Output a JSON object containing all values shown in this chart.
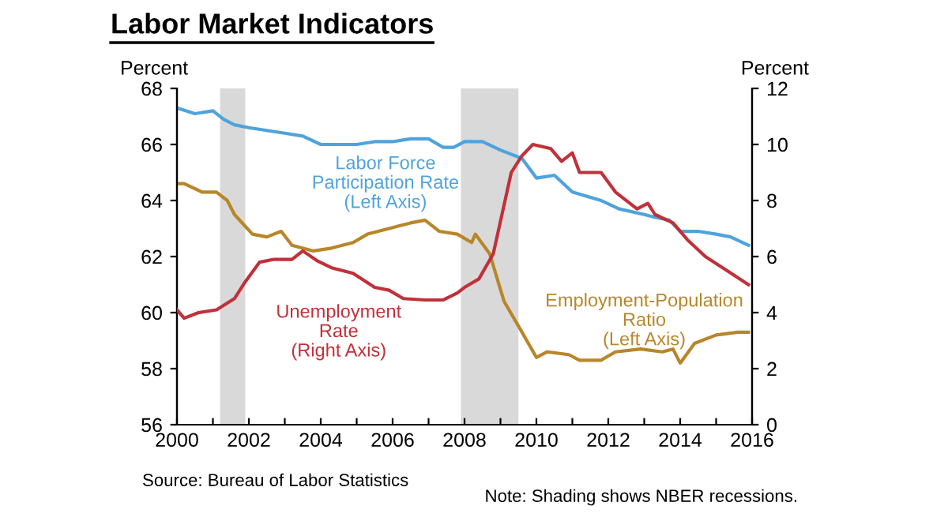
{
  "chart_data": {
    "type": "line",
    "title": "Labor Market Indicators",
    "ylabel": "Percent",
    "y2label": "Percent",
    "xlim": [
      2000,
      2016
    ],
    "xticks": [
      2000,
      {
        "value": 2001,
        "label": null
      },
      2002,
      {
        "value": 2003,
        "label": null
      },
      2004,
      {
        "value": 2005,
        "label": null
      },
      2006,
      {
        "value": 2007,
        "label": null
      },
      2008,
      {
        "value": 2009,
        "label": null
      },
      2010,
      {
        "value": 2011,
        "label": null
      },
      2012,
      {
        "value": 2013,
        "label": null
      },
      2014,
      {
        "value": 2015,
        "label": null
      },
      2016
    ],
    "ylim": [
      56,
      68
    ],
    "yticks": [
      56,
      58,
      60,
      62,
      64,
      66,
      68
    ],
    "y2lim": [
      0,
      12
    ],
    "y2ticks": [
      0,
      2,
      4,
      6,
      8,
      10,
      12
    ],
    "grid": false,
    "legend": false,
    "line_style": "solid",
    "marker": "none",
    "bands": [
      {
        "axis": "x",
        "from": 2001.2,
        "to": 2001.9,
        "color": "#d9d9d9"
      },
      {
        "axis": "x",
        "from": 2007.9,
        "to": 2009.5,
        "color": "#d9d9d9"
      }
    ],
    "annotations": [
      "Source: Bureau of Labor Statistics",
      "Note: Shading shows NBER recessions."
    ],
    "series": [
      {
        "name": "Labor Force\nParticipation Rate\n(Left Axis)",
        "color": "#4fa3dc",
        "x": [
          2000,
          2000.5,
          2001,
          2001.3,
          2001.6,
          2002,
          2002.5,
          2003,
          2003.5,
          2004,
          2004.5,
          2005,
          2005.5,
          2006,
          2006.5,
          2007,
          2007.4,
          2007.7,
          2008,
          2008.5,
          2009,
          2009.6,
          2010,
          2010.5,
          2011,
          2011.8,
          2012.3,
          2013,
          2013.3,
          2013.7,
          2014,
          2014.5,
          2015,
          2015.4,
          2015.9
        ],
        "values": [
          67.3,
          67.1,
          67.2,
          66.9,
          66.7,
          66.6,
          66.5,
          66.4,
          66.3,
          66.0,
          66.0,
          66.0,
          66.1,
          66.1,
          66.2,
          66.2,
          65.9,
          65.9,
          66.1,
          66.1,
          65.8,
          65.5,
          64.8,
          64.9,
          64.3,
          64.0,
          63.7,
          63.5,
          63.4,
          63.3,
          62.9,
          62.9,
          62.8,
          62.7,
          62.4
        ]
      },
      {
        "name": "Unemployment\nRate\n(Right Axis)",
        "color": "#c0313a",
        "axis": "y2",
        "x": [
          2000,
          2000.2,
          2000.6,
          2001.1,
          2001.6,
          2001.9,
          2002.3,
          2002.7,
          2003.2,
          2003.5,
          2003.9,
          2004.3,
          2004.9,
          2005.5,
          2005.9,
          2006.3,
          2006.9,
          2007.4,
          2007.8,
          2008.0,
          2008.4,
          2008.8,
          2009.3,
          2009.6,
          2009.9,
          2010.4,
          2010.7,
          2011.0,
          2011.2,
          2011.8,
          2012.2,
          2012.8,
          2013.1,
          2013.3,
          2013.8,
          2014.2,
          2014.7,
          2015.3,
          2015.9
        ],
        "values": [
          4.1,
          3.8,
          4.0,
          4.1,
          4.5,
          5.1,
          5.8,
          5.9,
          5.9,
          6.2,
          5.85,
          5.6,
          5.4,
          4.9,
          4.8,
          4.5,
          4.45,
          4.45,
          4.7,
          4.9,
          5.2,
          6.1,
          9.0,
          9.6,
          10.0,
          9.85,
          9.4,
          9.7,
          9.0,
          9.0,
          8.3,
          7.7,
          7.9,
          7.5,
          7.2,
          6.6,
          6.0,
          5.5,
          5.0
        ]
      },
      {
        "name": "Employment-Population\nRatio\n(Left Axis)",
        "color": "#b8862a",
        "x": [
          2000,
          2000.2,
          2000.7,
          2001.1,
          2001.4,
          2001.6,
          2002.1,
          2002.5,
          2002.9,
          2003.2,
          2003.8,
          2004.3,
          2004.9,
          2005.3,
          2005.9,
          2006.5,
          2006.9,
          2007.3,
          2007.8,
          2008.2,
          2008.3,
          2008.7,
          2009.1,
          2009.6,
          2010.0,
          2010.3,
          2010.9,
          2011.2,
          2011.8,
          2012.2,
          2012.9,
          2013.5,
          2013.8,
          2014.0,
          2014.4,
          2015.0,
          2015.6,
          2015.9
        ],
        "values": [
          64.6,
          64.6,
          64.3,
          64.3,
          64.0,
          63.5,
          62.8,
          62.7,
          62.9,
          62.4,
          62.2,
          62.3,
          62.5,
          62.8,
          63.0,
          63.2,
          63.3,
          62.9,
          62.8,
          62.5,
          62.8,
          62.1,
          60.4,
          59.3,
          58.4,
          58.6,
          58.5,
          58.3,
          58.3,
          58.6,
          58.7,
          58.6,
          58.7,
          58.2,
          58.9,
          59.2,
          59.3,
          59.3
        ]
      }
    ]
  }
}
